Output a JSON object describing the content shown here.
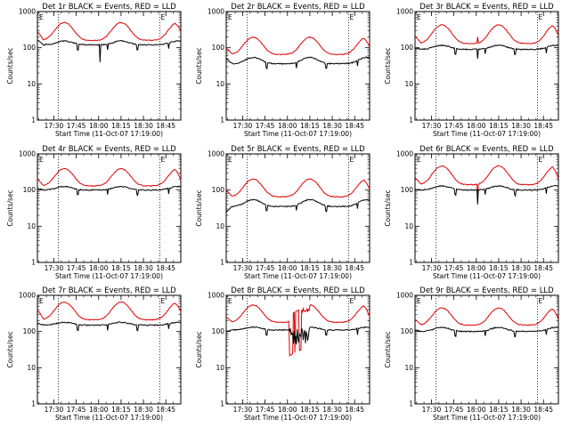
{
  "chart_data": [
    {
      "type": "line",
      "title": "Det 1r BLACK = Events, RED = LLD",
      "ylabel": "Counts/sec",
      "xlabel": "Start Time (11-Oct-07 17:19:00)",
      "x_ticks": [
        "17:30",
        "17:45",
        "18:00",
        "18:15",
        "18:30",
        "18:45"
      ],
      "y_ticks": [
        "1",
        "10",
        "100",
        "1000"
      ],
      "yscale": "log",
      "ylim": [
        1,
        1000
      ],
      "xlim": [
        "17:19",
        "18:55"
      ],
      "vlines": [
        "17:33",
        "18:41"
      ],
      "marker_labels": [
        "E",
        "E"
      ],
      "red": {
        "base": 160,
        "amp": 3.1,
        "ends": [
          280,
          300
        ]
      },
      "black": {
        "base": 120,
        "amp": 1.28,
        "start": 165,
        "spike": {
          "t": "18:01",
          "min": 40
        }
      },
      "series": [
        {
          "name": "RED",
          "color": "#e00000"
        },
        {
          "name": "BLACK",
          "color": "#000000"
        }
      ]
    },
    {
      "type": "line",
      "title": "Det 2r BLACK = Events, RED = LLD",
      "ylabel": "Counts/sec",
      "xlabel": "Start Time (11-Oct-07 17:19:00)",
      "x_ticks": [
        "17:30",
        "17:45",
        "18:00",
        "18:15",
        "18:30",
        "18:45"
      ],
      "y_ticks": [
        "1",
        "10",
        "100",
        "1000"
      ],
      "yscale": "log",
      "ylim": [
        1,
        1000
      ],
      "xlim": [
        "17:19",
        "18:55"
      ],
      "vlines": [
        "17:33",
        "18:41"
      ],
      "marker_labels": [
        "E",
        "E"
      ],
      "red": {
        "base": 65,
        "amp": 3.0,
        "ends": [
          100,
          105
        ]
      },
      "black": {
        "base": 36,
        "amp": 1.5,
        "start": 50
      },
      "series": [
        {
          "name": "RED",
          "color": "#e00000"
        },
        {
          "name": "BLACK",
          "color": "#000000"
        }
      ]
    },
    {
      "type": "line",
      "title": "Det 3r BLACK = Events, RED = LLD",
      "ylabel": "Counts/sec",
      "xlabel": "Start Time (11-Oct-07 17:19:00)",
      "x_ticks": [
        "17:30",
        "17:45",
        "18:00",
        "18:15",
        "18:30",
        "18:45"
      ],
      "y_ticks": [
        "1",
        "10",
        "100",
        "1000"
      ],
      "yscale": "log",
      "ylim": [
        1,
        1000
      ],
      "xlim": [
        "17:19",
        "18:55"
      ],
      "vlines": [
        "17:33",
        "18:41"
      ],
      "marker_labels": [
        "E",
        "E"
      ],
      "red": {
        "base": 130,
        "amp": 3.3,
        "ends": [
          210,
          220
        ],
        "spike": {
          "t": "18:01",
          "max": 200
        }
      },
      "black": {
        "base": 90,
        "amp": 1.3,
        "start": 100,
        "spike": {
          "t": "18:01",
          "min": 50
        }
      },
      "series": [
        {
          "name": "RED",
          "color": "#e00000"
        },
        {
          "name": "BLACK",
          "color": "#000000"
        }
      ]
    },
    {
      "type": "line",
      "title": "Det 4r BLACK = Events, RED = LLD",
      "ylabel": "Counts/sec",
      "xlabel": "Start Time (11-Oct-07 17:19:00)",
      "x_ticks": [
        "17:30",
        "17:45",
        "18:00",
        "18:15",
        "18:30",
        "18:45"
      ],
      "y_ticks": [
        "1",
        "10",
        "100",
        "1000"
      ],
      "yscale": "log",
      "ylim": [
        1,
        1000
      ],
      "xlim": [
        "17:19",
        "18:55"
      ],
      "vlines": [
        "17:33",
        "18:41"
      ],
      "marker_labels": [
        "E",
        "E"
      ],
      "red": {
        "base": 130,
        "amp": 3.0,
        "ends": [
          200,
          190
        ]
      },
      "black": {
        "base": 100,
        "amp": 1.25,
        "start": 110
      },
      "series": [
        {
          "name": "RED",
          "color": "#e00000"
        },
        {
          "name": "BLACK",
          "color": "#000000"
        }
      ]
    },
    {
      "type": "line",
      "title": "Det 5r BLACK = Events, RED = LLD",
      "ylabel": "Counts/sec",
      "xlabel": "Start Time (11-Oct-07 17:19:00)",
      "x_ticks": [
        "17:30",
        "17:45",
        "18:00",
        "18:15",
        "18:30",
        "18:45"
      ],
      "y_ticks": [
        "1",
        "10",
        "100",
        "1000"
      ],
      "yscale": "log",
      "ylim": [
        1,
        1000
      ],
      "xlim": [
        "17:19",
        "18:55"
      ],
      "vlines": [
        "17:33",
        "18:41"
      ],
      "marker_labels": [
        "E",
        "E"
      ],
      "red": {
        "base": 65,
        "amp": 3.1,
        "ends": [
          100,
          105
        ]
      },
      "black": {
        "base": 35,
        "amp": 1.55,
        "start": 25
      },
      "series": [
        {
          "name": "RED",
          "color": "#e00000"
        },
        {
          "name": "BLACK",
          "color": "#000000"
        }
      ]
    },
    {
      "type": "line",
      "title": "Det 6r BLACK = Events, RED = LLD",
      "ylabel": "Counts/sec",
      "xlabel": "Start Time (11-Oct-07 17:19:00)",
      "x_ticks": [
        "17:30",
        "17:45",
        "18:00",
        "18:15",
        "18:30",
        "18:45"
      ],
      "y_ticks": [
        "1",
        "10",
        "100",
        "1000"
      ],
      "yscale": "log",
      "ylim": [
        1,
        1000
      ],
      "xlim": [
        "17:19",
        "18:55"
      ],
      "vlines": [
        "17:33",
        "18:41"
      ],
      "marker_labels": [
        "E",
        "E"
      ],
      "red": {
        "base": 140,
        "amp": 3.3,
        "ends": [
          220,
          200
        ],
        "spike": {
          "t": "18:01",
          "min": 80
        }
      },
      "black": {
        "base": 100,
        "amp": 1.3,
        "start": 105,
        "spike": {
          "t": "18:01",
          "min": 40
        }
      },
      "series": [
        {
          "name": "RED",
          "color": "#e00000"
        },
        {
          "name": "BLACK",
          "color": "#000000"
        }
      ]
    },
    {
      "type": "line",
      "title": "Det 7r BLACK = Events, RED = LLD",
      "ylabel": "Counts/sec",
      "xlabel": "Start Time (11-Oct-07 17:19:00)",
      "x_ticks": [
        "17:30",
        "17:45",
        "18:00",
        "18:15",
        "18:30",
        "18:45"
      ],
      "y_ticks": [
        "1",
        "10",
        "100",
        "1000"
      ],
      "yscale": "log",
      "ylim": [
        1,
        1000
      ],
      "xlim": [
        "17:19",
        "18:55"
      ],
      "vlines": [
        "17:33",
        "18:41"
      ],
      "marker_labels": [
        "E",
        "E"
      ],
      "red": {
        "base": 210,
        "amp": 3.1,
        "ends": [
          400,
          350
        ]
      },
      "black": {
        "base": 150,
        "amp": 1.2,
        "start": 170
      },
      "series": [
        {
          "name": "RED",
          "color": "#e00000"
        },
        {
          "name": "BLACK",
          "color": "#000000"
        }
      ]
    },
    {
      "type": "line",
      "title": "Det 8r BLACK = Events, RED = LLD",
      "ylabel": "Counts/sec",
      "xlabel": "Start Time (11-Oct-07 17:19:00)",
      "x_ticks": [
        "17:30",
        "17:45",
        "18:00",
        "18:15",
        "18:30",
        "18:45"
      ],
      "y_ticks": [
        "1",
        "10",
        "100",
        "1000"
      ],
      "yscale": "log",
      "ylim": [
        1,
        1000
      ],
      "xlim": [
        "17:19",
        "18:55"
      ],
      "vlines": [
        "17:33",
        "18:41"
      ],
      "marker_labels": [
        "E",
        "E"
      ],
      "red": {
        "base": 180,
        "amp": 3.0,
        "ends": [
          250,
          260
        ],
        "anomaly": {
          "from": "18:01",
          "to": "18:15",
          "low": 30,
          "high": 400
        }
      },
      "black": {
        "base": 110,
        "amp": 1.2,
        "start": 100,
        "anomaly": {
          "from": "18:01",
          "to": "18:15",
          "low": 40,
          "high": 130
        }
      },
      "series": [
        {
          "name": "RED",
          "color": "#e00000"
        },
        {
          "name": "BLACK",
          "color": "#000000"
        }
      ]
    },
    {
      "type": "line",
      "title": "Det 9r BLACK = Events, RED = LLD",
      "ylabel": "Counts/sec",
      "xlabel": "Start Time (11-Oct-07 17:19:00)",
      "x_ticks": [
        "17:30",
        "17:45",
        "18:00",
        "18:15",
        "18:30",
        "18:45"
      ],
      "y_ticks": [
        "1",
        "10",
        "100",
        "1000"
      ],
      "yscale": "log",
      "ylim": [
        1,
        1000
      ],
      "xlim": [
        "17:19",
        "18:55"
      ],
      "vlines": [
        "17:33",
        "18:41"
      ],
      "marker_labels": [
        "E",
        "E"
      ],
      "red": {
        "base": 150,
        "amp": 3.0,
        "ends": [
          220,
          210
        ]
      },
      "black": {
        "base": 100,
        "amp": 1.3,
        "start": 110
      },
      "series": [
        {
          "name": "RED",
          "color": "#e00000"
        },
        {
          "name": "BLACK",
          "color": "#000000"
        }
      ]
    }
  ]
}
